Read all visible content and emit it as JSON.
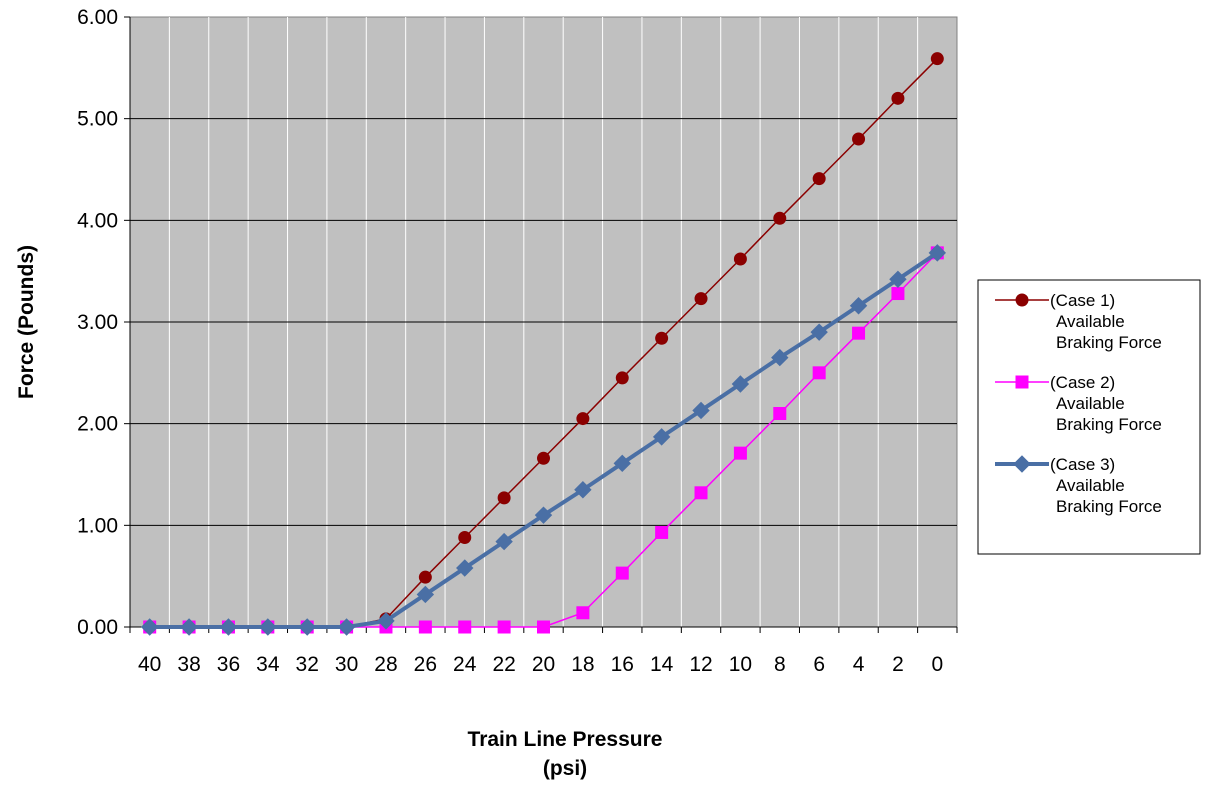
{
  "chart_data": {
    "type": "line",
    "title": "",
    "xlabel": [
      "Train Line Pressure",
      "(psi)"
    ],
    "ylabel": "Force (Pounds)",
    "categories": [
      "40",
      "38",
      "36",
      "34",
      "32",
      "30",
      "28",
      "26",
      "24",
      "22",
      "20",
      "18",
      "16",
      "14",
      "12",
      "10",
      "8",
      "6",
      "4",
      "2",
      "0"
    ],
    "ylim": [
      0,
      6
    ],
    "yticks": [
      "0.00",
      "1.00",
      "2.00",
      "3.00",
      "4.00",
      "5.00",
      "6.00"
    ],
    "grid": true,
    "legend_position": "right",
    "plot_background": "#c0c0c0",
    "series": [
      {
        "name": [
          "(Case 1)",
          "Available",
          "Braking Force"
        ],
        "color": "#8b0000",
        "marker": "circle",
        "values": [
          0,
          0,
          0,
          0,
          0,
          0,
          0.08,
          0.49,
          0.88,
          1.27,
          1.66,
          2.05,
          2.45,
          2.84,
          3.23,
          3.62,
          4.02,
          4.41,
          4.8,
          5.2,
          5.59
        ]
      },
      {
        "name": [
          "(Case 2)",
          "Available",
          "Braking Force"
        ],
        "color": "#ff00ff",
        "marker": "square",
        "values": [
          0,
          0,
          0,
          0,
          0,
          0,
          0,
          0,
          0,
          0,
          0,
          0.14,
          0.53,
          0.93,
          1.32,
          1.71,
          2.1,
          2.5,
          2.89,
          3.28,
          3.68
        ]
      },
      {
        "name": [
          "(Case 3)",
          "Available",
          "Braking Force"
        ],
        "color": "#4a6fa5",
        "marker": "diamond",
        "values": [
          0,
          0,
          0,
          0,
          0,
          0,
          0.06,
          0.32,
          0.58,
          0.84,
          1.1,
          1.35,
          1.61,
          1.87,
          2.13,
          2.39,
          2.65,
          2.9,
          3.16,
          3.42,
          3.68
        ]
      }
    ]
  }
}
